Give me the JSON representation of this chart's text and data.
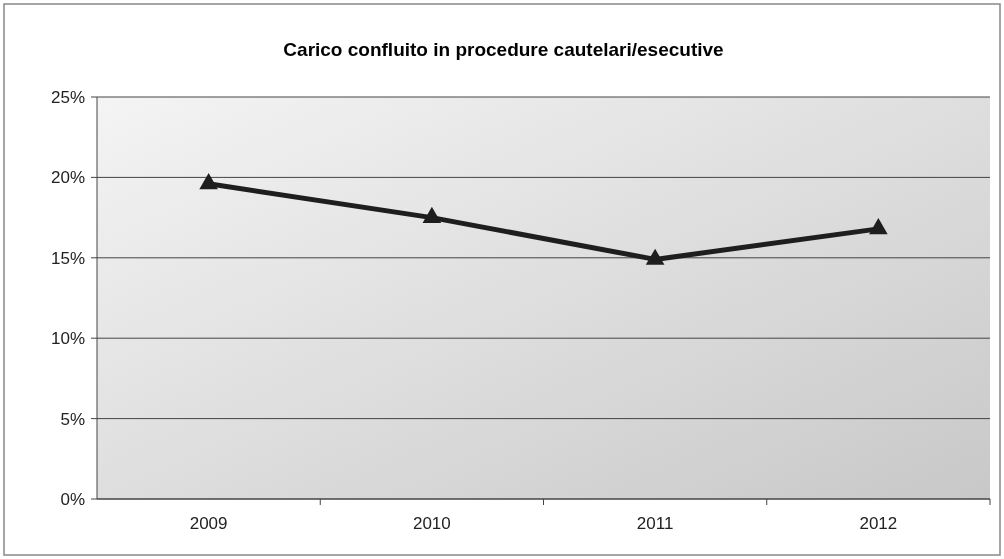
{
  "chart_data": {
    "type": "line",
    "title": "Carico confluito in procedure cautelari/esecutive",
    "categories": [
      "2009",
      "2010",
      "2011",
      "2012"
    ],
    "series": [
      {
        "color": "#1e1e1e",
        "values": [
          19.6,
          17.5,
          14.9,
          16.8
        ]
      }
    ],
    "ylim": [
      0,
      25
    ],
    "yticks": [
      {
        "value": 0,
        "label": "0%"
      },
      {
        "value": 5,
        "label": "5%"
      },
      {
        "value": 10,
        "label": "10%"
      },
      {
        "value": 15,
        "label": "15%"
      },
      {
        "value": 20,
        "label": "20%"
      },
      {
        "value": 25,
        "label": "25%"
      }
    ],
    "grid": "y",
    "marker": "triangle",
    "line_style": "solid"
  }
}
